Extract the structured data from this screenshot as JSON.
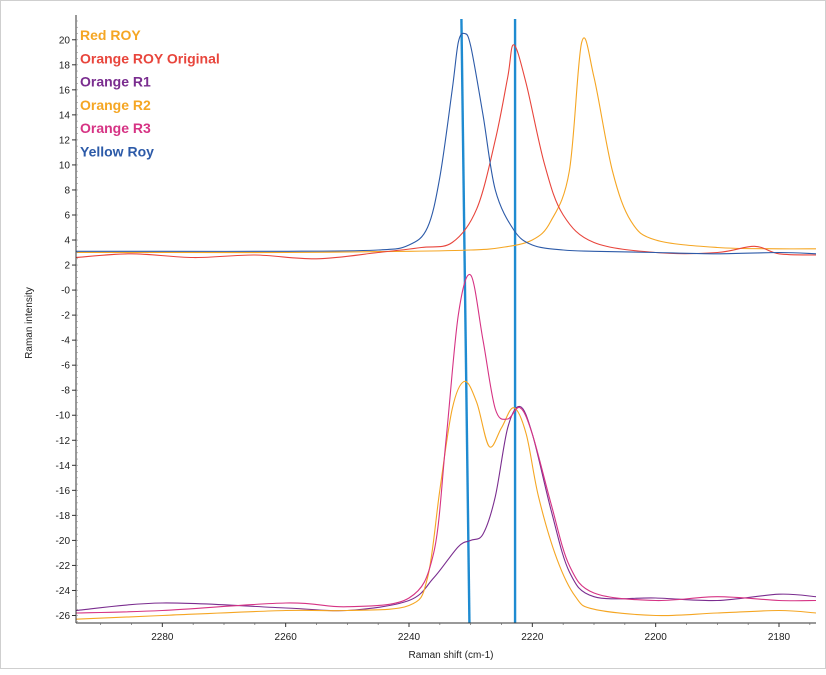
{
  "chart_data": {
    "type": "line",
    "title": "",
    "xlabel": "Raman shift (cm-1)",
    "ylabel": "Raman intensity",
    "xlim": [
      2294,
      2174
    ],
    "ylim": [
      -26.6,
      21.5
    ],
    "x_reversed": true,
    "x_ticks": [
      2280,
      2260,
      2240,
      2220,
      2200,
      2180
    ],
    "x_tick_labels": [
      "2280",
      "2260",
      "2240",
      "2220",
      "2200",
      "2180"
    ],
    "y_ticks": [
      20,
      18,
      16,
      14,
      12,
      10,
      8,
      6,
      4,
      2,
      0,
      -2,
      -4,
      -6,
      -8,
      -10,
      -12,
      -14,
      -16,
      -18,
      -20,
      -22,
      -24,
      -26
    ],
    "y_tick_labels": [
      "20",
      "18",
      "16",
      "14",
      "12",
      "10",
      "8",
      "6",
      "4",
      "2",
      "-0",
      "-2",
      "-4",
      "-6",
      "-8",
      "-10",
      "-12",
      "-14",
      "-16",
      "-18",
      "-20",
      "-22",
      "-24",
      "-26"
    ],
    "grid": false,
    "legend_position": "top-left",
    "series": [
      {
        "name": "Red ROY",
        "color": "#f5a623",
        "x": [
          2294,
          2280,
          2260,
          2240,
          2230,
          2225,
          2220,
          2217,
          2214,
          2212,
          2210,
          2207,
          2204,
          2200,
          2190,
          2180,
          2174
        ],
        "y": [
          3.0,
          3.0,
          3.0,
          3.1,
          3.2,
          3.4,
          4.0,
          5.5,
          9.5,
          19.8,
          17.0,
          9.5,
          5.5,
          4.0,
          3.4,
          3.3,
          3.3
        ]
      },
      {
        "name": "Orange ROY Original",
        "color": "#e8453c",
        "x": [
          2294,
          2285,
          2275,
          2265,
          2255,
          2245,
          2238,
          2233,
          2229,
          2226,
          2224,
          2223,
          2221,
          2218,
          2215,
          2210,
          2200,
          2190,
          2184,
          2180,
          2174
        ],
        "y": [
          2.6,
          2.9,
          2.6,
          2.8,
          2.5,
          3.0,
          3.4,
          3.8,
          6.5,
          12.0,
          17.0,
          19.6,
          16.5,
          10.0,
          6.0,
          3.8,
          3.0,
          3.0,
          3.5,
          2.9,
          2.8
        ]
      },
      {
        "name": "Orange R1",
        "color": "#7a2d8f",
        "x": [
          2294,
          2280,
          2260,
          2250,
          2240,
          2236,
          2232,
          2230,
          2228,
          2226,
          2224,
          2222,
          2220,
          2217,
          2214,
          2210,
          2200,
          2190,
          2180,
          2174
        ],
        "y": [
          -25.6,
          -25.0,
          -25.4,
          -25.6,
          -24.8,
          -23.0,
          -20.5,
          -20.0,
          -19.5,
          -16.5,
          -11.0,
          -9.3,
          -11.5,
          -17.5,
          -22.5,
          -24.5,
          -24.6,
          -24.8,
          -24.3,
          -24.5
        ]
      },
      {
        "name": "Orange R2",
        "color": "#f5a623",
        "x": [
          2294,
          2280,
          2260,
          2250,
          2240,
          2237,
          2235,
          2233,
          2231,
          2229,
          2227,
          2225,
          2223,
          2221,
          2219,
          2216,
          2213,
          2210,
          2200,
          2190,
          2180,
          2174
        ],
        "y": [
          -26.3,
          -26.0,
          -25.6,
          -25.6,
          -25.2,
          -23.0,
          -16.0,
          -9.5,
          -7.3,
          -9.0,
          -12.5,
          -11.0,
          -9.4,
          -11.5,
          -16.5,
          -21.5,
          -24.5,
          -25.5,
          -26.0,
          -25.8,
          -25.6,
          -25.8
        ]
      },
      {
        "name": "Orange R3",
        "color": "#d63384",
        "x": [
          2294,
          2280,
          2260,
          2250,
          2240,
          2236,
          2234,
          2232,
          2230,
          2228,
          2226,
          2224,
          2222,
          2220,
          2217,
          2214,
          2210,
          2200,
          2190,
          2180,
          2174
        ],
        "y": [
          -25.8,
          -25.6,
          -25.0,
          -25.3,
          -24.6,
          -21.0,
          -12.0,
          -2.0,
          1.2,
          -4.0,
          -9.5,
          -10.3,
          -9.4,
          -11.5,
          -17.0,
          -22.0,
          -24.2,
          -24.8,
          -24.5,
          -24.8,
          -24.8
        ]
      },
      {
        "name": "Yellow Roy",
        "color": "#2c5aa8",
        "x": [
          2294,
          2280,
          2260,
          2245,
          2240,
          2237,
          2235,
          2233,
          2232,
          2231,
          2230,
          2228,
          2226,
          2223,
          2220,
          2215,
          2210,
          2200,
          2190,
          2180,
          2174
        ],
        "y": [
          3.1,
          3.1,
          3.1,
          3.2,
          3.6,
          5.0,
          9.0,
          16.0,
          19.8,
          20.5,
          19.5,
          14.0,
          8.0,
          4.8,
          3.6,
          3.2,
          3.1,
          3.0,
          2.9,
          3.0,
          2.9
        ]
      }
    ],
    "reference_lines": [
      {
        "x_top": 2231.5,
        "x_bottom": 2230.2,
        "color": "#1e8bd1"
      },
      {
        "x_top": 2222.8,
        "x_bottom": 2222.8,
        "color": "#1e8bd1"
      }
    ]
  }
}
